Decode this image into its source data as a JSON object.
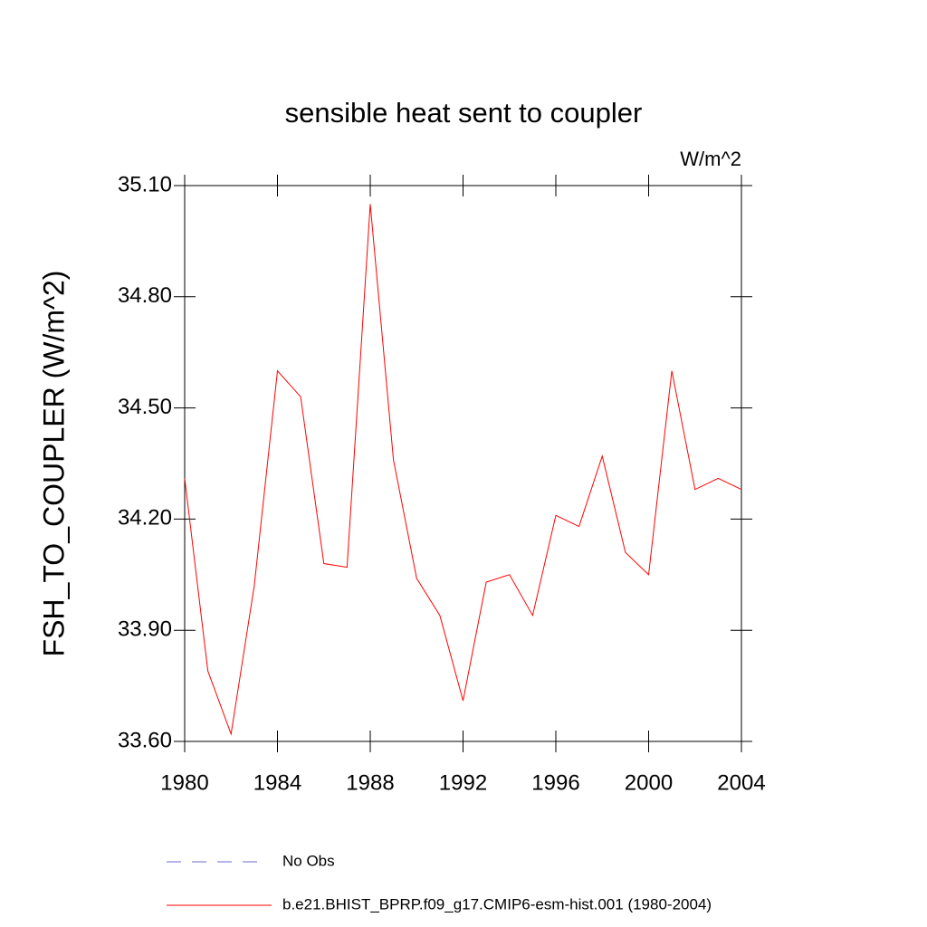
{
  "chart_data": {
    "type": "line",
    "title": "sensible heat sent to coupler",
    "units": "W/m^2",
    "y_label": "FSH_TO_COUPLER  (W/m^2)",
    "x": [
      1980,
      1981,
      1982,
      1983,
      1984,
      1985,
      1986,
      1987,
      1988,
      1989,
      1990,
      1991,
      1992,
      1993,
      1994,
      1995,
      1996,
      1997,
      1998,
      1999,
      2000,
      2001,
      2002,
      2003,
      2004
    ],
    "series": [
      {
        "name": "b.e21.BHIST_BPRP.f09_g17.CMIP6-esm-hist.001 (1980-2004)",
        "color": "#ff0000",
        "values": [
          34.31,
          33.79,
          33.62,
          34.02,
          34.6,
          34.53,
          34.08,
          34.07,
          35.05,
          34.36,
          34.04,
          33.94,
          33.71,
          34.03,
          34.05,
          33.94,
          34.21,
          34.18,
          34.37,
          34.11,
          34.05,
          34.6,
          34.28,
          34.31,
          34.28
        ]
      }
    ],
    "extra_legend": [
      {
        "name": "No Obs",
        "color": "#6a6ad0",
        "dashed": true
      }
    ],
    "xlim": [
      1980,
      2004
    ],
    "xticks": [
      1980,
      1984,
      1988,
      1992,
      1996,
      2000,
      2004
    ],
    "ylim": [
      33.6,
      35.1
    ],
    "yticks": [
      {
        "value": 33.6,
        "label": "33.60"
      },
      {
        "value": 33.9,
        "label": "33.90"
      },
      {
        "value": 34.2,
        "label": "34.20"
      },
      {
        "value": 34.5,
        "label": "34.50"
      },
      {
        "value": 34.8,
        "label": "34.80"
      },
      {
        "value": 35.1,
        "label": "35.10"
      }
    ],
    "grid": false
  }
}
